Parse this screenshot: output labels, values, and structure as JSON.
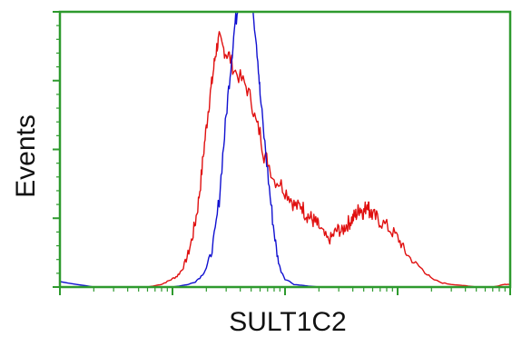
{
  "chart_data": {
    "type": "line",
    "xlabel": "SULT1C2",
    "ylabel": "Events",
    "xscale": "log",
    "xlim": [
      1,
      10000
    ],
    "ylim": [
      0,
      100
    ],
    "grid": false,
    "legend": "none",
    "frame_color": "#2e9a2e",
    "series": [
      {
        "color": "#e01010",
        "x": [
          1,
          1.3,
          1.6,
          2,
          2.5,
          3,
          4,
          5,
          6,
          7,
          8,
          9,
          10,
          11,
          12,
          13,
          14,
          15,
          16,
          17,
          18,
          19,
          20,
          21,
          22,
          23,
          24,
          25,
          26,
          28,
          30,
          32,
          35,
          40,
          45,
          50,
          55,
          60,
          65,
          70,
          80,
          90,
          100,
          110,
          120,
          130,
          140,
          150,
          160,
          170,
          180,
          190,
          200,
          220,
          240,
          260,
          280,
          300,
          320,
          340,
          360,
          380,
          400,
          420,
          440,
          460,
          480,
          500,
          520,
          540,
          560,
          580,
          600,
          650,
          700,
          800,
          900,
          1000,
          1100,
          1200,
          1400,
          1600,
          1800,
          2000,
          2500,
          3000,
          4000,
          5000,
          6000,
          7000,
          8000,
          9000,
          10000
        ],
        "y": [
          0,
          0,
          0,
          0,
          0,
          0,
          0,
          0,
          0,
          0.5,
          1,
          2,
          3,
          4,
          6,
          9,
          13,
          18,
          24,
          31,
          40,
          50,
          58,
          66,
          72,
          78,
          84,
          88,
          90,
          87,
          85,
          84,
          79,
          76,
          73,
          68,
          60,
          56,
          48,
          46,
          39,
          38,
          35,
          33,
          30,
          29,
          30,
          27,
          26,
          25,
          24,
          23,
          22,
          19,
          17,
          18,
          20,
          21,
          20,
          22,
          23,
          24,
          25,
          26,
          27,
          29,
          28,
          27,
          29,
          31,
          28,
          27,
          26,
          25,
          24,
          22,
          20,
          18,
          15,
          12,
          9,
          7,
          5,
          3,
          1.5,
          1,
          0.5,
          0,
          0,
          0,
          0.5,
          1,
          1
        ]
      },
      {
        "color": "#1010d0",
        "x": [
          1,
          2,
          3,
          5,
          7,
          10,
          12,
          14,
          16,
          18,
          20,
          22,
          24,
          26,
          28,
          30,
          32,
          34,
          36,
          38,
          40,
          42,
          44,
          46,
          48,
          50,
          52,
          55,
          58,
          60,
          65,
          70,
          75,
          80,
          85,
          90,
          100,
          120,
          150,
          200,
          300,
          500,
          1000,
          2000,
          5000,
          10000
        ],
        "y": [
          2,
          0,
          0,
          0,
          0,
          0,
          0.5,
          1,
          2,
          4,
          7,
          12,
          20,
          32,
          48,
          62,
          75,
          86,
          96,
          100,
          100,
          100,
          100,
          100,
          100,
          100,
          100,
          92,
          80,
          70,
          55,
          42,
          30,
          20,
          12,
          7,
          3,
          1,
          0.5,
          0,
          0,
          0,
          0,
          0,
          0,
          0
        ]
      }
    ]
  }
}
